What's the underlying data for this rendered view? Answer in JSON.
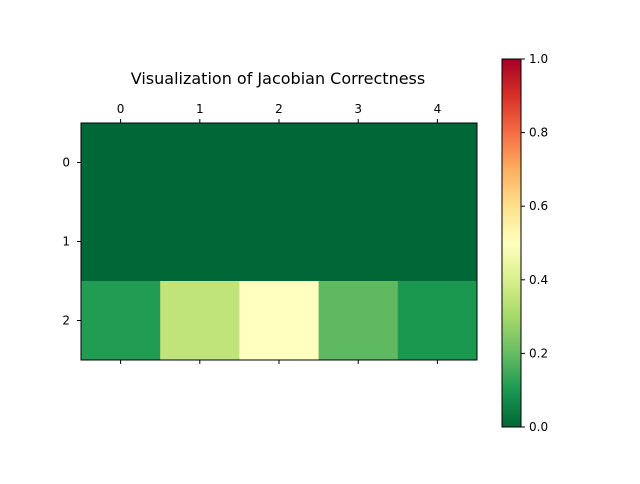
{
  "chart_data": {
    "type": "heatmap",
    "title": "Visualization of Jacobian Correctness",
    "x_ticks": [
      "0",
      "1",
      "2",
      "3",
      "4"
    ],
    "y_ticks": [
      "0",
      "1",
      "2"
    ],
    "values": [
      [
        0.0,
        0.0,
        0.0,
        0.0,
        0.0
      ],
      [
        0.0,
        0.0,
        0.0,
        0.0,
        0.0
      ],
      [
        0.11,
        0.35,
        0.5,
        0.19,
        0.1
      ]
    ],
    "colormap": "RdYlGn_r",
    "vmin": 0.0,
    "vmax": 1.0,
    "colorbar": {
      "placement": "right",
      "ticks": [
        "0.0",
        "0.2",
        "0.4",
        "0.6",
        "0.8",
        "1.0"
      ]
    },
    "grid": false,
    "x_tick_position": "top"
  }
}
